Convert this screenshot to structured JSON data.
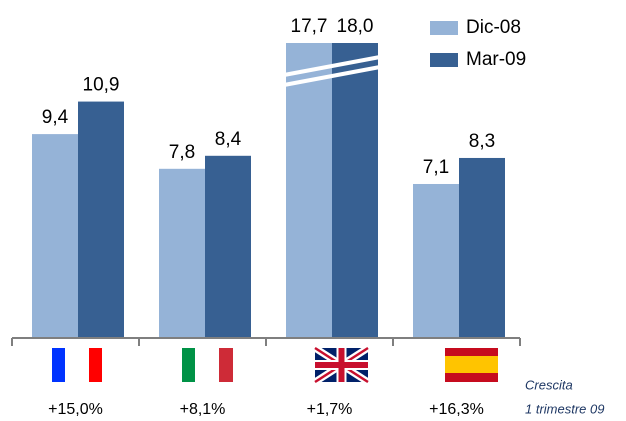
{
  "chart_data": {
    "type": "bar",
    "categories": [
      null,
      null,
      null,
      null
    ],
    "series": [
      {
        "name": "Dic-08",
        "color": "#95b3d7",
        "values": [
          9.4,
          7.8,
          17.7,
          7.1
        ],
        "value_labels": [
          "9,4",
          "7,8",
          "17,7",
          "7,1"
        ]
      },
      {
        "name": "Mar-09",
        "color": "#376092",
        "values": [
          10.9,
          8.4,
          18.0,
          8.3
        ],
        "value_labels": [
          "10,9",
          "8,4",
          "18,0",
          "8,3"
        ]
      }
    ],
    "ylim": [
      0,
      13.6
    ],
    "legend": "top-right",
    "growth": [
      "+15,0%",
      "+8,1%",
      "+1,7%",
      "+16,3%"
    ],
    "note": [
      "Crescita",
      "1 trimestre 09"
    ]
  }
}
